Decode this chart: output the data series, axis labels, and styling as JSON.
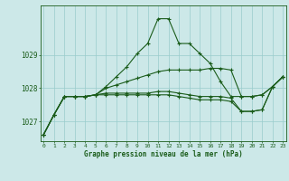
{
  "background_color": "#cce8e8",
  "line_color": "#1a5c1a",
  "grid_color": "#99cccc",
  "xlabel": "Graphe pression niveau de la mer (hPa)",
  "x_ticks": [
    0,
    1,
    2,
    3,
    4,
    5,
    6,
    7,
    8,
    9,
    10,
    11,
    12,
    13,
    14,
    15,
    16,
    17,
    18,
    19,
    20,
    21,
    22,
    23
  ],
  "y_ticks": [
    1027,
    1028,
    1029
  ],
  "ylim": [
    1026.4,
    1030.5
  ],
  "xlim": [
    -0.3,
    23.3
  ],
  "series": [
    [
      1026.6,
      1027.2,
      1027.75,
      1027.75,
      1027.75,
      1027.8,
      1028.05,
      1028.35,
      1028.65,
      1029.05,
      1029.35,
      1030.1,
      1030.1,
      1029.35,
      1029.35,
      1029.05,
      1028.75,
      1028.2,
      1027.75,
      1027.75,
      1027.75,
      1027.8,
      1028.05,
      1028.35
    ],
    [
      1026.6,
      1027.2,
      1027.75,
      1027.75,
      1027.75,
      1027.8,
      1028.0,
      1028.1,
      1028.2,
      1028.3,
      1028.4,
      1028.5,
      1028.55,
      1028.55,
      1028.55,
      1028.55,
      1028.6,
      1028.6,
      1028.55,
      1027.75,
      1027.75,
      1027.8,
      1028.05,
      1028.35
    ],
    [
      1026.6,
      1027.2,
      1027.75,
      1027.75,
      1027.75,
      1027.8,
      1027.85,
      1027.85,
      1027.85,
      1027.85,
      1027.85,
      1027.9,
      1027.9,
      1027.85,
      1027.8,
      1027.75,
      1027.75,
      1027.75,
      1027.7,
      1027.3,
      1027.3,
      1027.35,
      1028.05,
      1028.35
    ],
    [
      1026.6,
      1027.2,
      1027.75,
      1027.75,
      1027.75,
      1027.8,
      1027.8,
      1027.8,
      1027.8,
      1027.8,
      1027.8,
      1027.8,
      1027.8,
      1027.75,
      1027.7,
      1027.65,
      1027.65,
      1027.65,
      1027.6,
      1027.3,
      1027.3,
      1027.35,
      1028.05,
      1028.35
    ]
  ]
}
